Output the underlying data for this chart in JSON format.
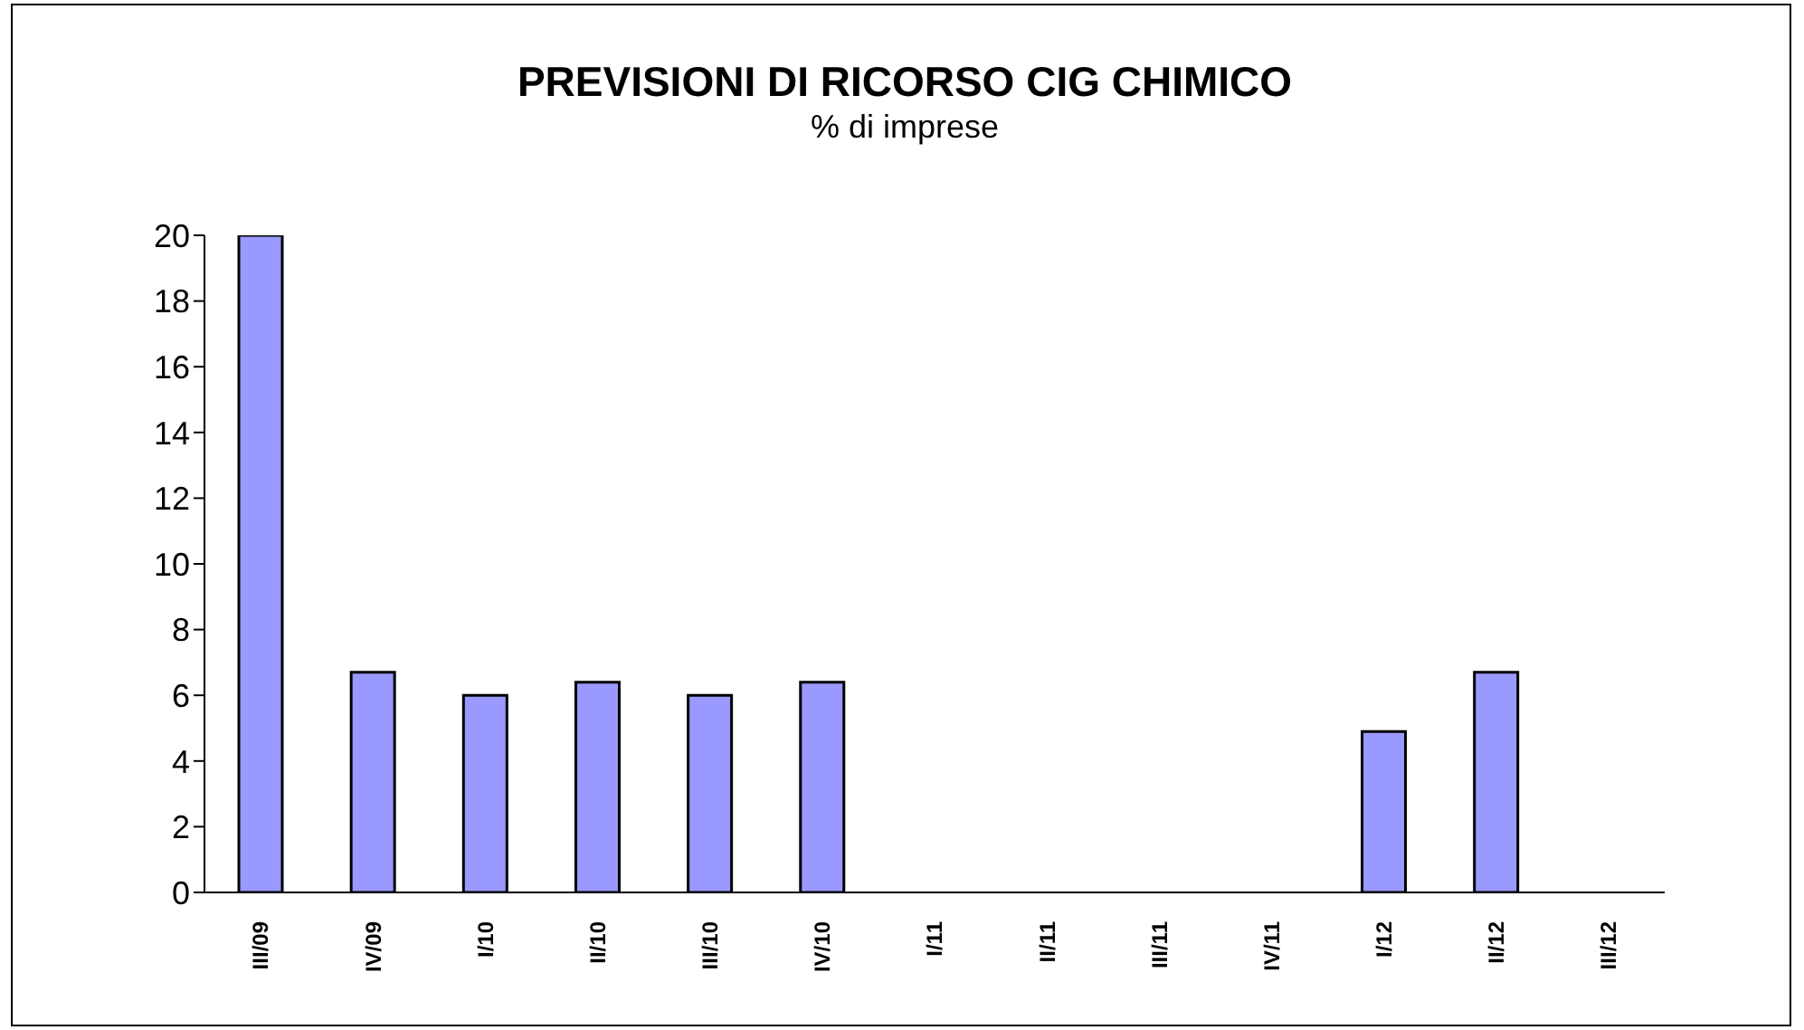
{
  "chart_data": {
    "type": "bar",
    "title": "PREVISIONI DI RICORSO CIG CHIMICO",
    "subtitle": "% di imprese",
    "categories": [
      "III/09",
      "IV/09",
      "I/10",
      "II/10",
      "III/10",
      "IV/10",
      "I/11",
      "II/11",
      "III/11",
      "IV/11",
      "I/12",
      "II/12",
      "III/12"
    ],
    "values": [
      20,
      6.7,
      6,
      6.4,
      6,
      6.4,
      0,
      0,
      0,
      0,
      4.9,
      6.7,
      0
    ],
    "color": "#9999ff",
    "ylim": [
      0,
      20
    ],
    "yticks": [
      0,
      2,
      4,
      6,
      8,
      10,
      12,
      14,
      16,
      18,
      20
    ]
  }
}
